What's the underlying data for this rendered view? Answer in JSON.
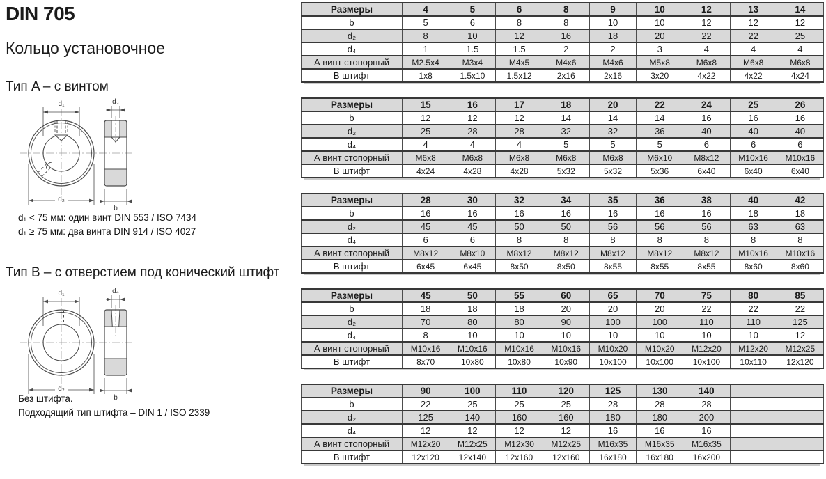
{
  "header": {
    "title": "DIN 705",
    "subtitle": "Кольцо установочное"
  },
  "type_a": {
    "heading": "Тип A – с винтом",
    "notes": [
      "d₁ < 75 мм: один винт DIN 553 / ISO 7434",
      "d₁ ≥ 75 мм: два винта DIN 914 / ISO 4027"
    ]
  },
  "type_b": {
    "heading": "Тип B – с отверстием под конический штифт",
    "notes": [
      "Без штифта.",
      "Подходящий тип штифта – DIN 1 / ISO 2339"
    ]
  },
  "drawing_labels": {
    "d1": "d₁",
    "d2": "d₂",
    "d3": "d₃",
    "d4": "d₄",
    "b": "b"
  },
  "colors": {
    "row_gray": "#d9d9d9",
    "border_dark": "#383838",
    "drawing_fill_gray": "#d9d9d9"
  },
  "tables": {
    "row_labels": {
      "sizes": "Размеры",
      "b": "b",
      "d2": "d₂",
      "d4": "d₄",
      "screw": "А винт стопорный",
      "pin": "В штифт"
    },
    "row_order": [
      "sizes",
      "b",
      "d2",
      "d4",
      "screw",
      "pin"
    ],
    "groups": [
      {
        "sizes": [
          "4",
          "5",
          "6",
          "8",
          "9",
          "10",
          "12",
          "13",
          "14"
        ],
        "b": [
          "5",
          "6",
          "8",
          "8",
          "10",
          "10",
          "12",
          "12",
          "12"
        ],
        "d2": [
          "8",
          "10",
          "12",
          "16",
          "18",
          "20",
          "22",
          "22",
          "25"
        ],
        "d4": [
          "1",
          "1.5",
          "1.5",
          "2",
          "2",
          "3",
          "4",
          "4",
          "4"
        ],
        "screw": [
          "M2.5x4",
          "M3x4",
          "M4x5",
          "M4x6",
          "M4x6",
          "M5x8",
          "M6x8",
          "M6x8",
          "M6x8"
        ],
        "pin": [
          "1x8",
          "1.5x10",
          "1.5x12",
          "2x16",
          "2x16",
          "3x20",
          "4x22",
          "4x22",
          "4x24"
        ]
      },
      {
        "sizes": [
          "15",
          "16",
          "17",
          "18",
          "20",
          "22",
          "24",
          "25",
          "26"
        ],
        "b": [
          "12",
          "12",
          "12",
          "14",
          "14",
          "14",
          "16",
          "16",
          "16"
        ],
        "d2": [
          "25",
          "28",
          "28",
          "32",
          "32",
          "36",
          "40",
          "40",
          "40"
        ],
        "d4": [
          "4",
          "4",
          "4",
          "5",
          "5",
          "5",
          "6",
          "6",
          "6"
        ],
        "screw": [
          "M6x8",
          "M6x8",
          "M6x8",
          "M6x8",
          "M6x8",
          "M6x10",
          "M8x12",
          "M10x16",
          "M10x16"
        ],
        "pin": [
          "4x24",
          "4x28",
          "4x28",
          "5x32",
          "5x32",
          "5x36",
          "6x40",
          "6x40",
          "6x40"
        ]
      },
      {
        "sizes": [
          "28",
          "30",
          "32",
          "34",
          "35",
          "36",
          "38",
          "40",
          "42"
        ],
        "b": [
          "16",
          "16",
          "16",
          "16",
          "16",
          "16",
          "16",
          "18",
          "18"
        ],
        "d2": [
          "45",
          "45",
          "50",
          "50",
          "56",
          "56",
          "56",
          "63",
          "63"
        ],
        "d4": [
          "6",
          "6",
          "8",
          "8",
          "8",
          "8",
          "8",
          "8",
          "8"
        ],
        "screw": [
          "M8x12",
          "M8x10",
          "M8x12",
          "M8x12",
          "M8x12",
          "M8x12",
          "M8x12",
          "M10x16",
          "M10x16"
        ],
        "pin": [
          "6x45",
          "6x45",
          "8x50",
          "8x50",
          "8x55",
          "8x55",
          "8x55",
          "8x60",
          "8x60"
        ]
      },
      {
        "sizes": [
          "45",
          "50",
          "55",
          "60",
          "65",
          "70",
          "75",
          "80",
          "85"
        ],
        "b": [
          "18",
          "18",
          "18",
          "20",
          "20",
          "20",
          "22",
          "22",
          "22"
        ],
        "d2": [
          "70",
          "80",
          "80",
          "90",
          "100",
          "100",
          "110",
          "110",
          "125"
        ],
        "d4": [
          "8",
          "10",
          "10",
          "10",
          "10",
          "10",
          "10",
          "10",
          "12"
        ],
        "screw": [
          "M10x16",
          "M10x16",
          "M10x16",
          "M10x16",
          "M10x20",
          "M10x20",
          "M12x20",
          "M12x20",
          "M12x25"
        ],
        "pin": [
          "8x70",
          "10x80",
          "10x80",
          "10x90",
          "10x100",
          "10x100",
          "10x100",
          "10x110",
          "12x120"
        ]
      },
      {
        "sizes": [
          "90",
          "100",
          "110",
          "120",
          "125",
          "130",
          "140",
          "",
          ""
        ],
        "b": [
          "22",
          "25",
          "25",
          "25",
          "28",
          "28",
          "28",
          "",
          ""
        ],
        "d2": [
          "125",
          "140",
          "160",
          "160",
          "180",
          "180",
          "200",
          "",
          ""
        ],
        "d4": [
          "12",
          "12",
          "12",
          "12",
          "16",
          "16",
          "16",
          "",
          ""
        ],
        "screw": [
          "M12x20",
          "M12x25",
          "M12x30",
          "M12x25",
          "M16x35",
          "M16x35",
          "M16x35",
          "",
          ""
        ],
        "pin": [
          "12x120",
          "12x140",
          "12x160",
          "12x160",
          "16x180",
          "16x180",
          "16x200",
          "",
          ""
        ]
      }
    ]
  }
}
